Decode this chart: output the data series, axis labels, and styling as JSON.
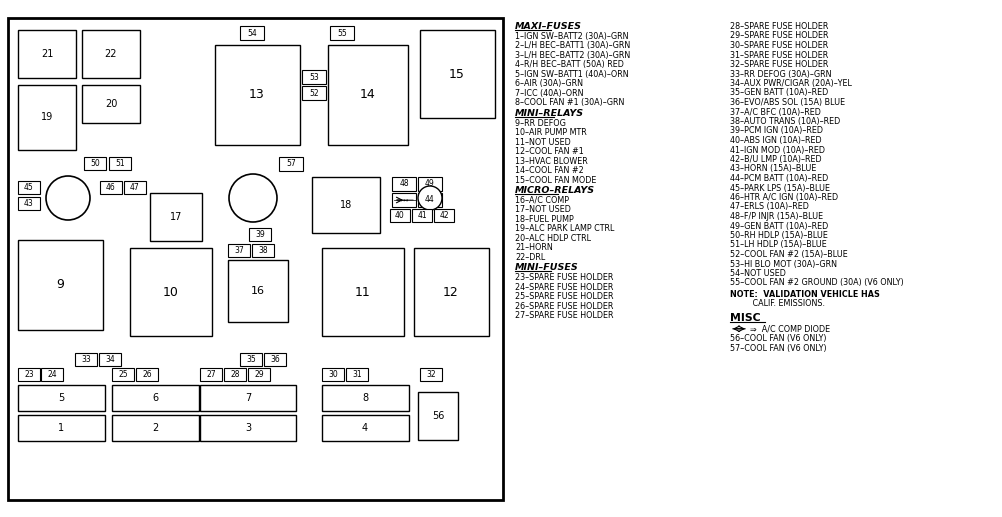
{
  "bg_color": "#ffffff",
  "maxi_fuses_title": "MAXI–FUSES",
  "maxi_fuses_lines": [
    "1–IGN SW–BATT2 (30A)–GRN",
    "2–L/H BEC–BATT1 (30A)–GRN",
    "3–L/H BEC–BATT2 (30A)–GRN",
    "4–R/H BEC–BATT (50A) RED",
    "5–IGN SW–BATT1 (40A)–ORN",
    "6–AIR (30A)–GRN",
    "7–ICC (40A)–ORN",
    "8–COOL FAN #1 (30A)–GRN"
  ],
  "mini_relays_title": "MINI–RELAYS",
  "mini_relays_lines": [
    "9–RR DEFOG",
    "10–AIR PUMP MTR",
    "11–NOT USED",
    "12–COOL FAN #1",
    "13–HVAC BLOWER",
    "14–COOL FAN #2",
    "15–COOL FAN MODE"
  ],
  "micro_relays_title": "MICRO–RELAYS",
  "micro_relays_lines": [
    "16–A/C COMP",
    "17–NOT USED",
    "18–FUEL PUMP",
    "19–ALC PARK LAMP CTRL",
    "20–ALC HDLP CTRL",
    "21–HORN",
    "22–DRL"
  ],
  "mini_fuses_title2": "MINI–FUSES",
  "mini_fuses_lines2": [
    "23–SPARE FUSE HOLDER",
    "24–SPARE FUSE HOLDER",
    "25–SPARE FUSE HOLDER",
    "26–SPARE FUSE HOLDER",
    "27–SPARE FUSE HOLDER"
  ],
  "right_col_lines": [
    "28–SPARE FUSE HOLDER",
    "29–SPARE FUSE HOLDER",
    "30–SPARE FUSE HOLDER",
    "31–SPARE FUSE HOLDER",
    "32–SPARE FUSE HOLDER",
    "33–RR DEFOG (30A)–GRN",
    "34–AUX PWR/CIGAR (20A)–YEL",
    "35–GEN BATT (10A)–RED",
    "36–EVO/ABS SOL (15A) BLUE",
    "37–A/C BFC (10A)–RED",
    "38–AUTO TRANS (10A)–RED",
    "39–PCM IGN (10A)–RED",
    "40–ABS IGN (10A)–RED",
    "41–IGN MOD (10A)–RED",
    "42–B/U LMP (10A)–RED",
    "43–HORN (15A)–BLUE",
    "44–PCM BATT (10A)–RED",
    "45–PARK LPS (15A)–BLUE",
    "46–HTR A/C IGN (10A)–RED",
    "47–ERLS (10A)–RED",
    "48–F/P INJR (15A)–BLUE",
    "49–GEN BATT (10A)–RED",
    "50–RH HDLP (15A)–BLUE",
    "51–LH HDLP (15A)–BLUE",
    "52–COOL FAN #2 (15A)–BLUE",
    "53–HI BLO MOT (30A)–GRN",
    "54–NOT USED",
    "55–COOL FAN #2 GROUND (30A) (V6 ONLY)"
  ],
  "note_line1": "NOTE:  VALIDATION VEHICLE HAS",
  "note_line2": "         CALIF. EMISSIONS.",
  "misc_title": "MISC",
  "misc_lines": [
    "⇒  A/C COMP DIODE",
    "56–COOL FAN (V6 ONLY)",
    "57–COOL FAN (V6 ONLY)"
  ]
}
